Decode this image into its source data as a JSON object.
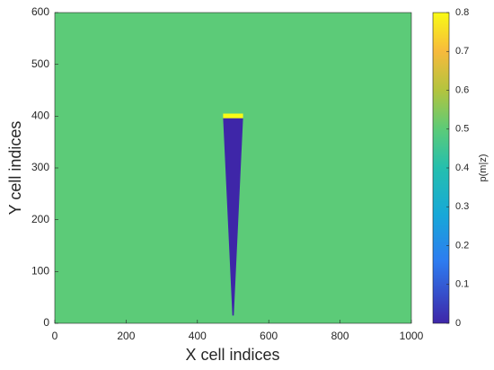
{
  "chart_data": {
    "type": "heatmap",
    "xlabel": "X cell indices",
    "ylabel": "Y cell indices",
    "colorbar_label": "p(m|z)",
    "xlim": [
      0,
      1000
    ],
    "ylim": [
      0,
      600
    ],
    "xticks": [
      0,
      200,
      400,
      600,
      800,
      1000
    ],
    "yticks": [
      0,
      100,
      200,
      300,
      400,
      500,
      600
    ],
    "clim": [
      0,
      0.8
    ],
    "cticks": [
      0,
      0.1,
      0.2,
      0.3,
      0.4,
      0.5,
      0.6,
      0.7,
      0.8
    ],
    "colormap": "parula",
    "field_value": 0.5,
    "regions": [
      {
        "x": [
          472,
          528,
          502,
          498
        ],
        "y": [
          396,
          396,
          15,
          15
        ],
        "value": 0
      },
      {
        "x": [
          472,
          528,
          528,
          472
        ],
        "y": [
          405,
          405,
          396,
          396
        ],
        "value": 0.8
      }
    ]
  }
}
